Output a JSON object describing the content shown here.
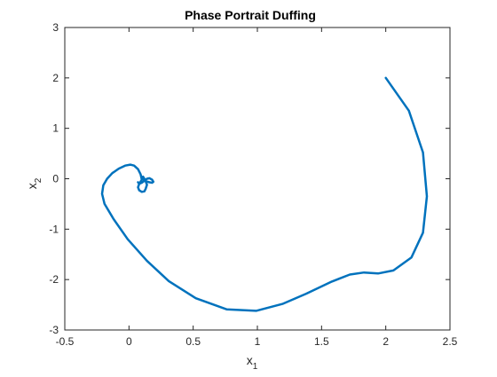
{
  "chart_data": {
    "type": "line",
    "title": "Phase Portrait Duffing",
    "xlabel": {
      "base": "x",
      "sub": "1"
    },
    "ylabel": {
      "base": "x",
      "sub": "2"
    },
    "xlim": [
      -0.5,
      2.5
    ],
    "ylim": [
      -3,
      3
    ],
    "xticks": [
      -0.5,
      0,
      0.5,
      1,
      1.5,
      2,
      2.5
    ],
    "xtick_labels": [
      "-0.5",
      "0",
      "0.5",
      "1",
      "1.5",
      "2",
      "2.5"
    ],
    "yticks": [
      -3,
      -2,
      -1,
      0,
      1,
      2,
      3
    ],
    "ytick_labels": [
      "-3",
      "-2",
      "-1",
      "0",
      "1",
      "2",
      "3"
    ],
    "grid": false,
    "box": true,
    "series": [
      {
        "color": "#0072BD",
        "x": [
          2.0,
          2.18,
          2.29,
          2.32,
          2.29,
          2.2,
          2.06,
          1.94,
          1.83,
          1.72,
          1.58,
          1.38,
          1.2,
          0.99,
          0.76,
          0.52,
          0.31,
          0.14,
          -0.01,
          -0.12,
          -0.19,
          -0.21,
          -0.2,
          -0.17,
          -0.13,
          -0.08,
          -0.03,
          0.01,
          0.04,
          0.07,
          0.09,
          0.1,
          0.08,
          0.07,
          0.08,
          0.1,
          0.12,
          0.13,
          0.14,
          0.13,
          0.12,
          0.11,
          0.1,
          0.11,
          0.13,
          0.16,
          0.18,
          0.19,
          0.18,
          0.16,
          0.14,
          0.12,
          0.1,
          0.08,
          0.07
        ],
        "y": [
          2.0,
          1.35,
          0.52,
          -0.35,
          -1.07,
          -1.56,
          -1.82,
          -1.88,
          -1.86,
          -1.9,
          -2.04,
          -2.28,
          -2.48,
          -2.62,
          -2.59,
          -2.37,
          -2.03,
          -1.63,
          -1.2,
          -0.8,
          -0.5,
          -0.3,
          -0.13,
          0.0,
          0.11,
          0.2,
          0.26,
          0.28,
          0.26,
          0.19,
          0.09,
          -0.02,
          -0.1,
          -0.17,
          -0.23,
          -0.26,
          -0.25,
          -0.2,
          -0.12,
          -0.05,
          0.0,
          0.04,
          0.03,
          -0.01,
          -0.05,
          -0.07,
          -0.08,
          -0.06,
          -0.02,
          0.01,
          0.0,
          -0.04,
          -0.08,
          -0.1,
          -0.07
        ]
      }
    ]
  }
}
